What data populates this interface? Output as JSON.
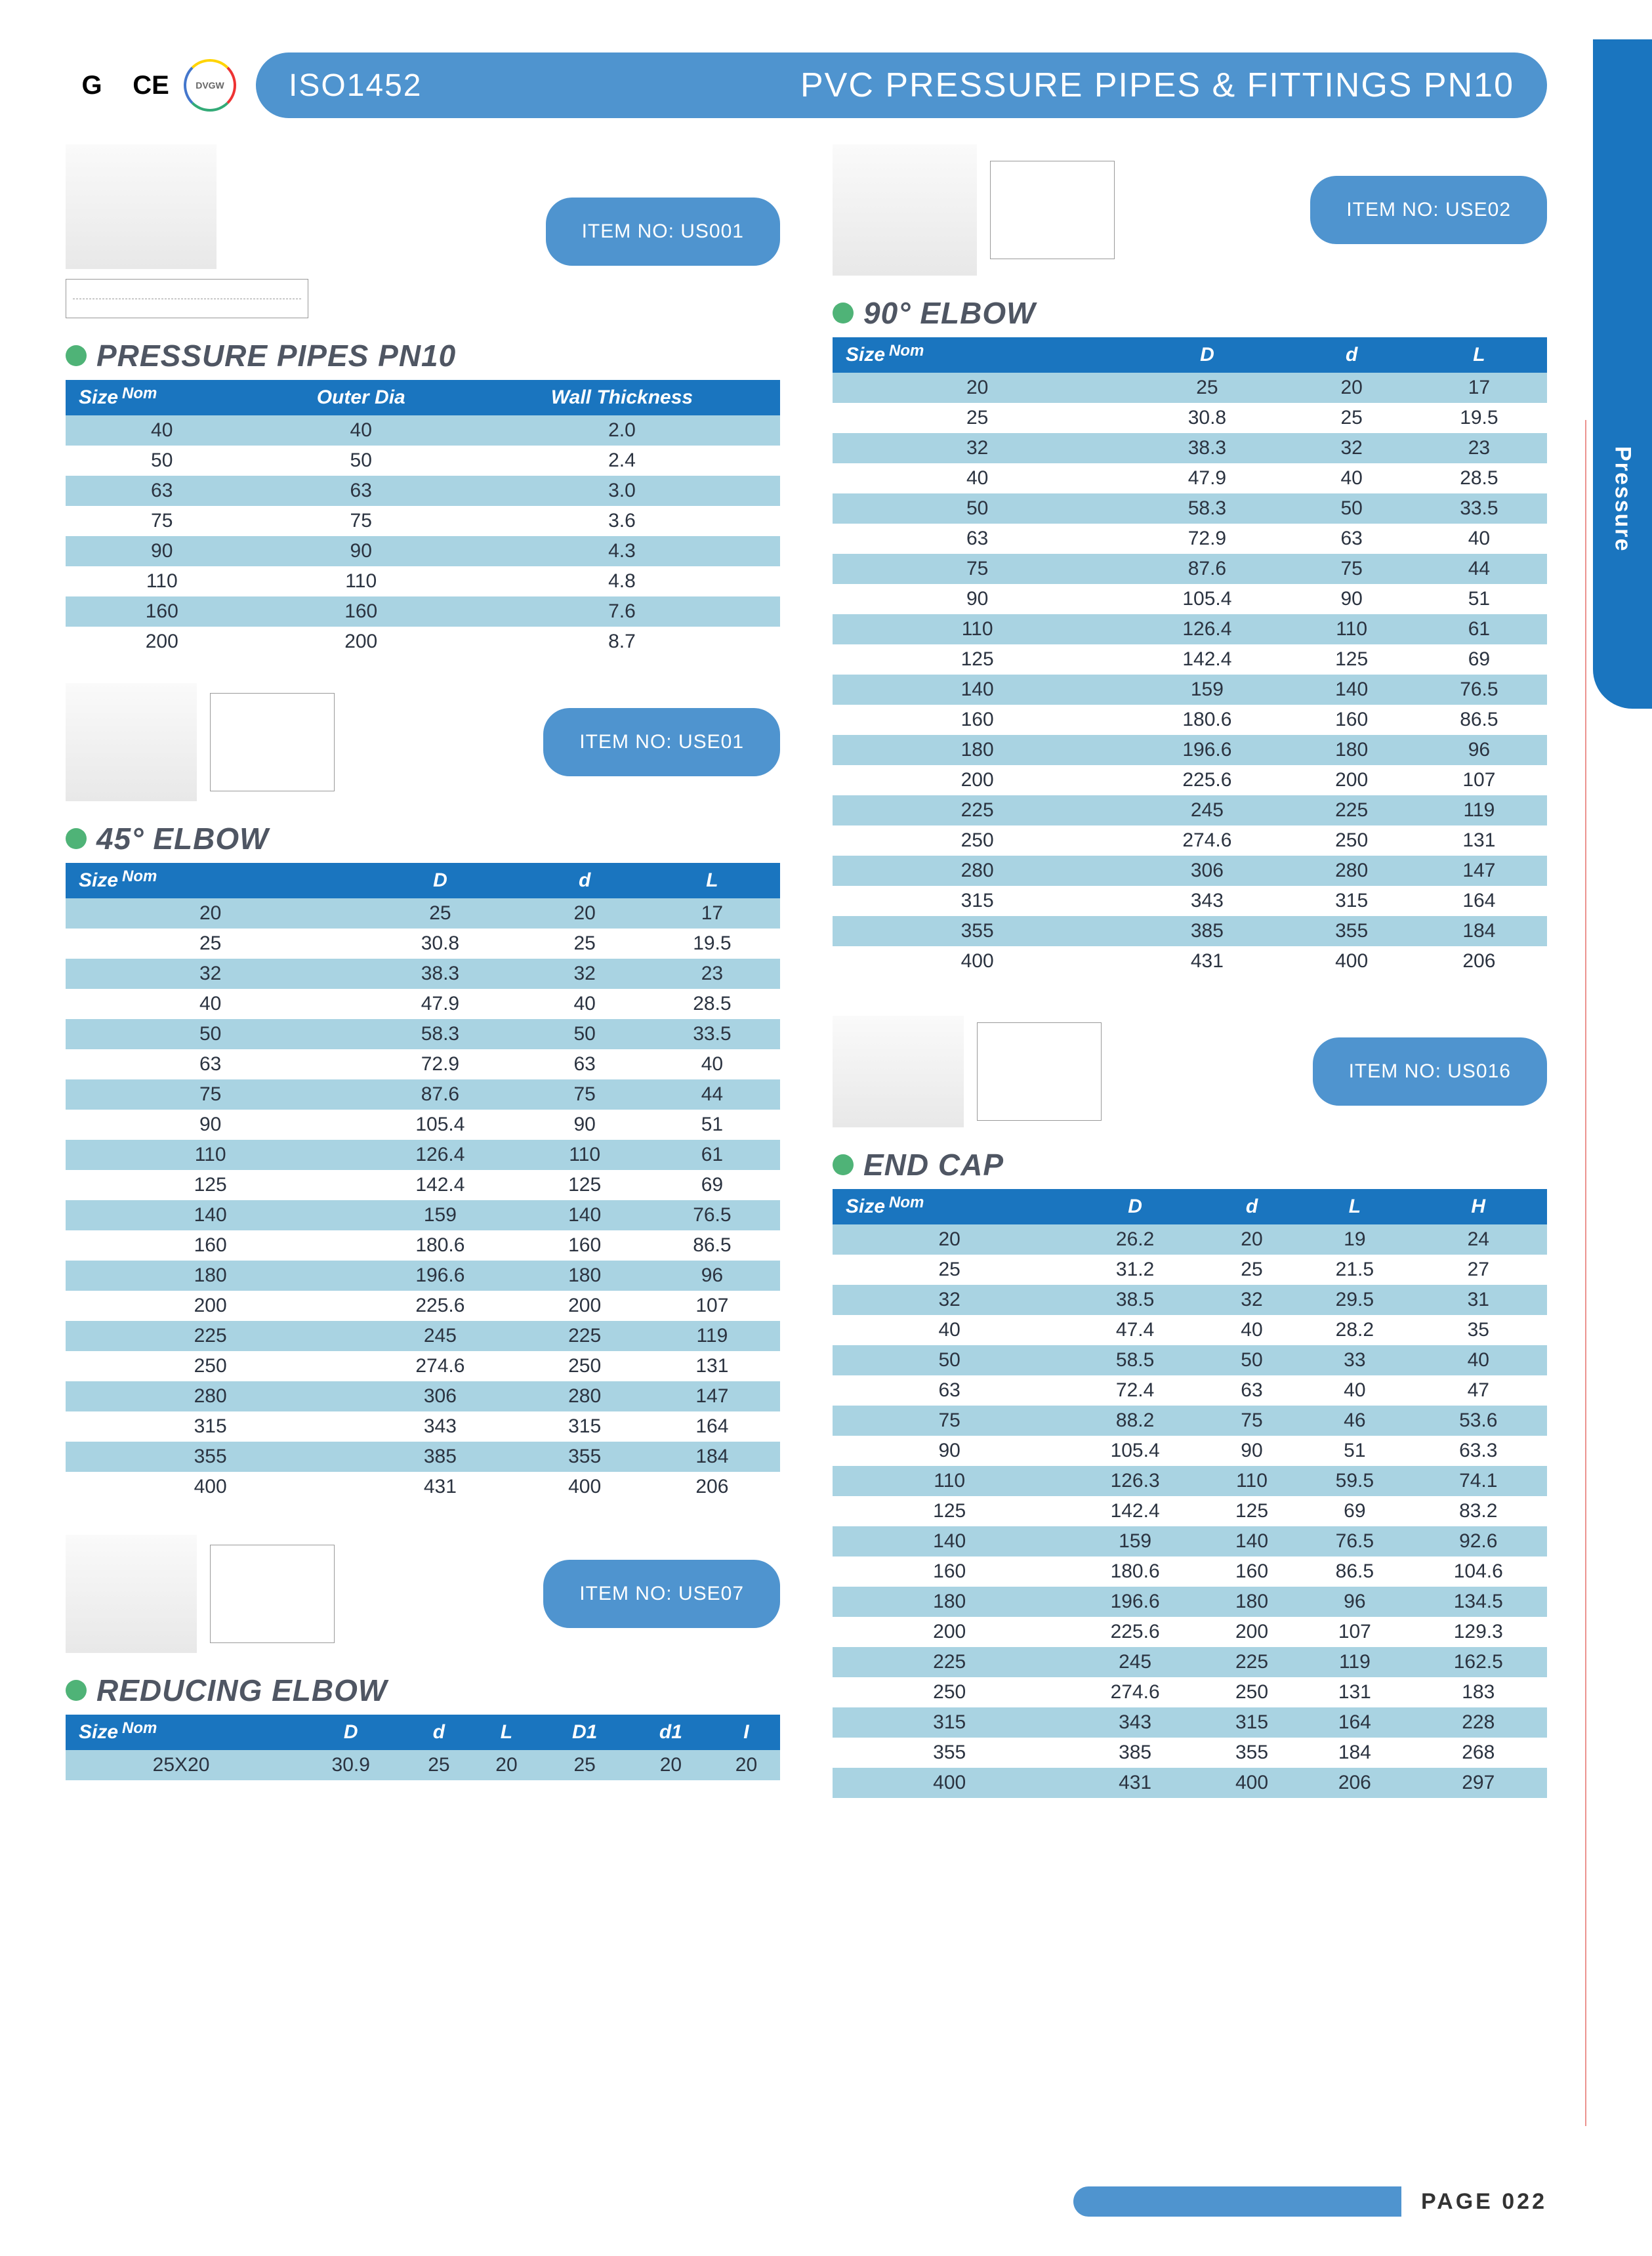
{
  "header": {
    "iso": "ISO1452",
    "title": "PVC PRESSURE PIPES & FITTINGS PN10",
    "certs": [
      "G",
      "CE"
    ],
    "side_tab": "Pressure"
  },
  "footer": {
    "page": "PAGE 022"
  },
  "items": {
    "pipes": "ITEM NO: US001",
    "elbow90": "ITEM NO: USE02",
    "elbow45": "ITEM NO: USE01",
    "reducing": "ITEM NO: USE07",
    "endcap": "ITEM NO: US016"
  },
  "sections": {
    "pipes": {
      "title": "PRESSURE PIPES PN10",
      "columns": [
        "Size Nom",
        "Outer Dia",
        "Wall Thickness"
      ],
      "rows": [
        [
          "40",
          "40",
          "2.0"
        ],
        [
          "50",
          "50",
          "2.4"
        ],
        [
          "63",
          "63",
          "3.0"
        ],
        [
          "75",
          "75",
          "3.6"
        ],
        [
          "90",
          "90",
          "4.3"
        ],
        [
          "110",
          "110",
          "4.8"
        ],
        [
          "160",
          "160",
          "7.6"
        ],
        [
          "200",
          "200",
          "8.7"
        ]
      ]
    },
    "elbow45": {
      "title": "45° ELBOW",
      "columns": [
        "Size",
        "Nom",
        "D",
        "d",
        "L"
      ],
      "cols_display": [
        "Size Nom",
        "D",
        "d",
        "L"
      ],
      "rows": [
        [
          "20",
          "25",
          "20",
          "17"
        ],
        [
          "25",
          "30.8",
          "25",
          "19.5"
        ],
        [
          "32",
          "38.3",
          "32",
          "23"
        ],
        [
          "40",
          "47.9",
          "40",
          "28.5"
        ],
        [
          "50",
          "58.3",
          "50",
          "33.5"
        ],
        [
          "63",
          "72.9",
          "63",
          "40"
        ],
        [
          "75",
          "87.6",
          "75",
          "44"
        ],
        [
          "90",
          "105.4",
          "90",
          "51"
        ],
        [
          "110",
          "126.4",
          "110",
          "61"
        ],
        [
          "125",
          "142.4",
          "125",
          "69"
        ],
        [
          "140",
          "159",
          "140",
          "76.5"
        ],
        [
          "160",
          "180.6",
          "160",
          "86.5"
        ],
        [
          "180",
          "196.6",
          "180",
          "96"
        ],
        [
          "200",
          "225.6",
          "200",
          "107"
        ],
        [
          "225",
          "245",
          "225",
          "119"
        ],
        [
          "250",
          "274.6",
          "250",
          "131"
        ],
        [
          "280",
          "306",
          "280",
          "147"
        ],
        [
          "315",
          "343",
          "315",
          "164"
        ],
        [
          "355",
          "385",
          "355",
          "184"
        ],
        [
          "400",
          "431",
          "400",
          "206"
        ]
      ]
    },
    "elbow90": {
      "title": "90° ELBOW",
      "columns": [
        "Size Nom",
        "D",
        "d",
        "L"
      ],
      "rows": [
        [
          "20",
          "25",
          "20",
          "17"
        ],
        [
          "25",
          "30.8",
          "25",
          "19.5"
        ],
        [
          "32",
          "38.3",
          "32",
          "23"
        ],
        [
          "40",
          "47.9",
          "40",
          "28.5"
        ],
        [
          "50",
          "58.3",
          "50",
          "33.5"
        ],
        [
          "63",
          "72.9",
          "63",
          "40"
        ],
        [
          "75",
          "87.6",
          "75",
          "44"
        ],
        [
          "90",
          "105.4",
          "90",
          "51"
        ],
        [
          "110",
          "126.4",
          "110",
          "61"
        ],
        [
          "125",
          "142.4",
          "125",
          "69"
        ],
        [
          "140",
          "159",
          "140",
          "76.5"
        ],
        [
          "160",
          "180.6",
          "160",
          "86.5"
        ],
        [
          "180",
          "196.6",
          "180",
          "96"
        ],
        [
          "200",
          "225.6",
          "200",
          "107"
        ],
        [
          "225",
          "245",
          "225",
          "119"
        ],
        [
          "250",
          "274.6",
          "250",
          "131"
        ],
        [
          "280",
          "306",
          "280",
          "147"
        ],
        [
          "315",
          "343",
          "315",
          "164"
        ],
        [
          "355",
          "385",
          "355",
          "184"
        ],
        [
          "400",
          "431",
          "400",
          "206"
        ]
      ]
    },
    "reducing": {
      "title": "REDUCING ELBOW",
      "columns": [
        "Size Nom",
        "D",
        "d",
        "L",
        "D1",
        "d1",
        "I"
      ],
      "rows": [
        [
          "25X20",
          "30.9",
          "25",
          "20",
          "25",
          "20",
          "20"
        ]
      ]
    },
    "endcap": {
      "title": "END CAP",
      "columns": [
        "Size Nom",
        "D",
        "d",
        "L",
        "H"
      ],
      "rows": [
        [
          "20",
          "26.2",
          "20",
          "19",
          "24"
        ],
        [
          "25",
          "31.2",
          "25",
          "21.5",
          "27"
        ],
        [
          "32",
          "38.5",
          "32",
          "29.5",
          "31"
        ],
        [
          "40",
          "47.4",
          "40",
          "28.2",
          "35"
        ],
        [
          "50",
          "58.5",
          "50",
          "33",
          "40"
        ],
        [
          "63",
          "72.4",
          "63",
          "40",
          "47"
        ],
        [
          "75",
          "88.2",
          "75",
          "46",
          "53.6"
        ],
        [
          "90",
          "105.4",
          "90",
          "51",
          "63.3"
        ],
        [
          "110",
          "126.3",
          "110",
          "59.5",
          "74.1"
        ],
        [
          "125",
          "142.4",
          "125",
          "69",
          "83.2"
        ],
        [
          "140",
          "159",
          "140",
          "76.5",
          "92.6"
        ],
        [
          "160",
          "180.6",
          "160",
          "86.5",
          "104.6"
        ],
        [
          "180",
          "196.6",
          "180",
          "96",
          "134.5"
        ],
        [
          "200",
          "225.6",
          "200",
          "107",
          "129.3"
        ],
        [
          "225",
          "245",
          "225",
          "119",
          "162.5"
        ],
        [
          "250",
          "274.6",
          "250",
          "131",
          "183"
        ],
        [
          "315",
          "343",
          "315",
          "164",
          "228"
        ],
        [
          "355",
          "385",
          "355",
          "184",
          "268"
        ],
        [
          "400",
          "431",
          "400",
          "206",
          "297"
        ]
      ]
    }
  }
}
